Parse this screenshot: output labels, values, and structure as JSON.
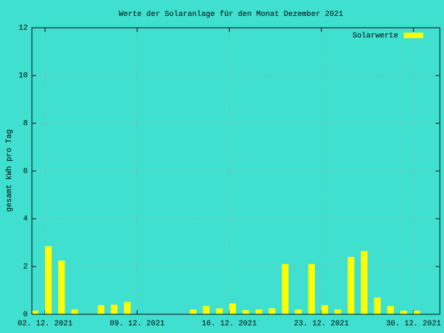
{
  "chart_data": {
    "type": "bar",
    "title": "Werte der Solaranlage für den Monat Dezember 2021",
    "y_label": "gesamt kWh pro Tag",
    "x": [
      "2021-12-01",
      "2021-12-02",
      "2021-12-03",
      "2021-12-04",
      "2021-12-06",
      "2021-12-07",
      "2021-12-08",
      "2021-12-13",
      "2021-12-14",
      "2021-12-15",
      "2021-12-16",
      "2021-12-17",
      "2021-12-18",
      "2021-12-19",
      "2021-12-20",
      "2021-12-21",
      "2021-12-22",
      "2021-12-23",
      "2021-12-24",
      "2021-12-25",
      "2021-12-26",
      "2021-12-27",
      "2021-12-28",
      "2021-12-29",
      "2021-12-30"
    ],
    "series": [
      {
        "name": "Solarwerte",
        "color": "#ffff00",
        "values": [
          0.15,
          2.85,
          2.25,
          0.2,
          0.38,
          0.4,
          0.52,
          0.2,
          0.35,
          0.25,
          0.45,
          0.18,
          0.2,
          0.25,
          2.1,
          0.2,
          2.1,
          0.38,
          0.2,
          2.4,
          2.65,
          0.7,
          0.35,
          0.15,
          0.15
        ]
      }
    ],
    "xlim": [
      "2021-12-01",
      "2022-01-01"
    ],
    "xticks": [
      {
        "value": "2021-12-02",
        "label": "02. 12. 2021"
      },
      {
        "value": "2021-12-09",
        "label": "09. 12. 2021"
      },
      {
        "value": "2021-12-16",
        "label": "16. 12. 2021"
      },
      {
        "value": "2021-12-23",
        "label": "23. 12. 2021"
      },
      {
        "value": "2021-12-30",
        "label": "30. 12. 2021"
      }
    ],
    "ylim": [
      0,
      12
    ],
    "yticks": [
      0,
      2,
      4,
      6,
      8,
      10,
      12
    ],
    "grid": true,
    "legend": "top-right",
    "background": "#40e0d0"
  }
}
